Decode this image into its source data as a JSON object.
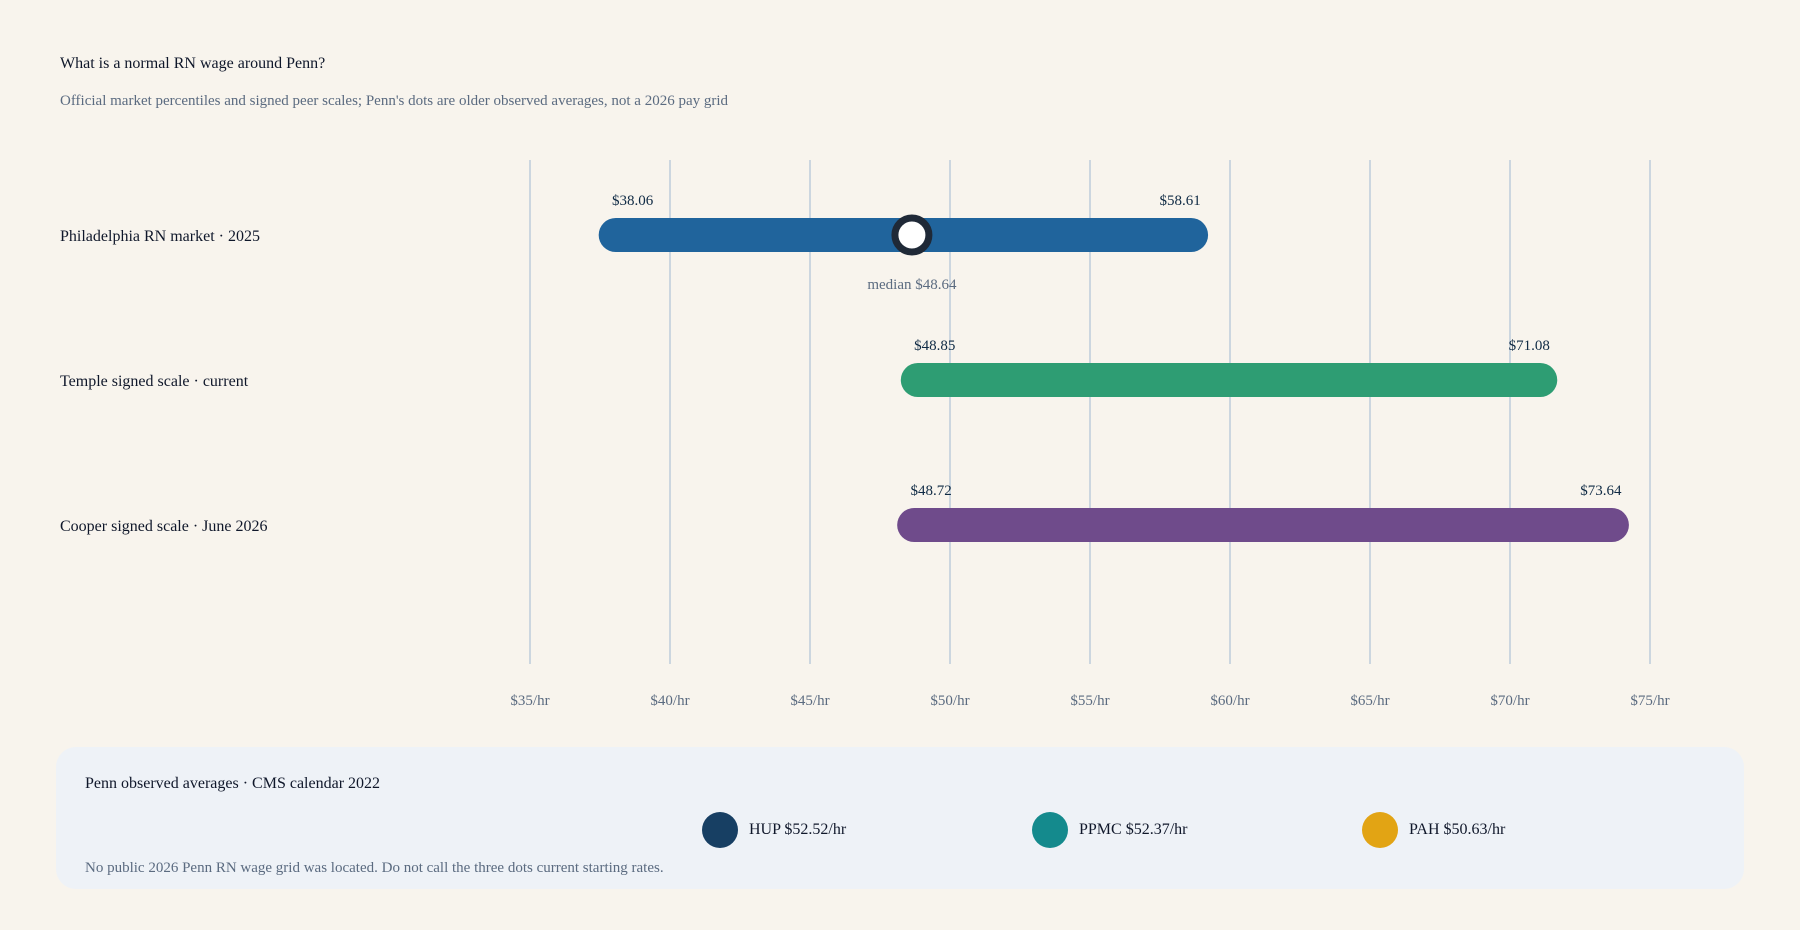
{
  "title": "What is a normal RN wage around Penn?",
  "subtitle": "Official market percentiles and signed peer scales; Penn's dots are older observed averages, not a 2026 pay grid",
  "chart_data": {
    "type": "bar",
    "orientation": "horizontal-range",
    "xlim": [
      35,
      75
    ],
    "ticks": [
      35,
      40,
      45,
      50,
      55,
      60,
      65,
      70,
      75
    ],
    "tick_labels": [
      "$35/hr",
      "$40/hr",
      "$45/hr",
      "$50/hr",
      "$55/hr",
      "$60/hr",
      "$65/hr",
      "$70/hr",
      "$75/hr"
    ],
    "grid": true,
    "series": [
      {
        "name": "Philadelphia RN market · 2025",
        "low": 38.06,
        "high": 58.61,
        "low_label": "$38.06",
        "high_label": "$58.61",
        "median": 48.64,
        "median_label": "median $48.64",
        "color": "#20649c"
      },
      {
        "name": "Temple signed scale · current",
        "low": 48.85,
        "high": 71.08,
        "low_label": "$48.85",
        "high_label": "$71.08",
        "color": "#2e9d73"
      },
      {
        "name": "Cooper signed scale · June 2026",
        "low": 48.72,
        "high": 73.64,
        "low_label": "$48.72",
        "high_label": "$73.64",
        "color": "#6f4b8b"
      }
    ]
  },
  "legend": {
    "title": "Penn observed averages · CMS calendar 2022",
    "items": [
      {
        "label": "HUP $52.52/hr",
        "color": "#173f63"
      },
      {
        "label": "PPMC $52.37/hr",
        "color": "#148a8d"
      },
      {
        "label": "PAH $50.63/hr",
        "color": "#e2a414"
      }
    ],
    "note": "No public 2026 Penn RN wage grid was located. Do not call the three dots current starting rates."
  }
}
